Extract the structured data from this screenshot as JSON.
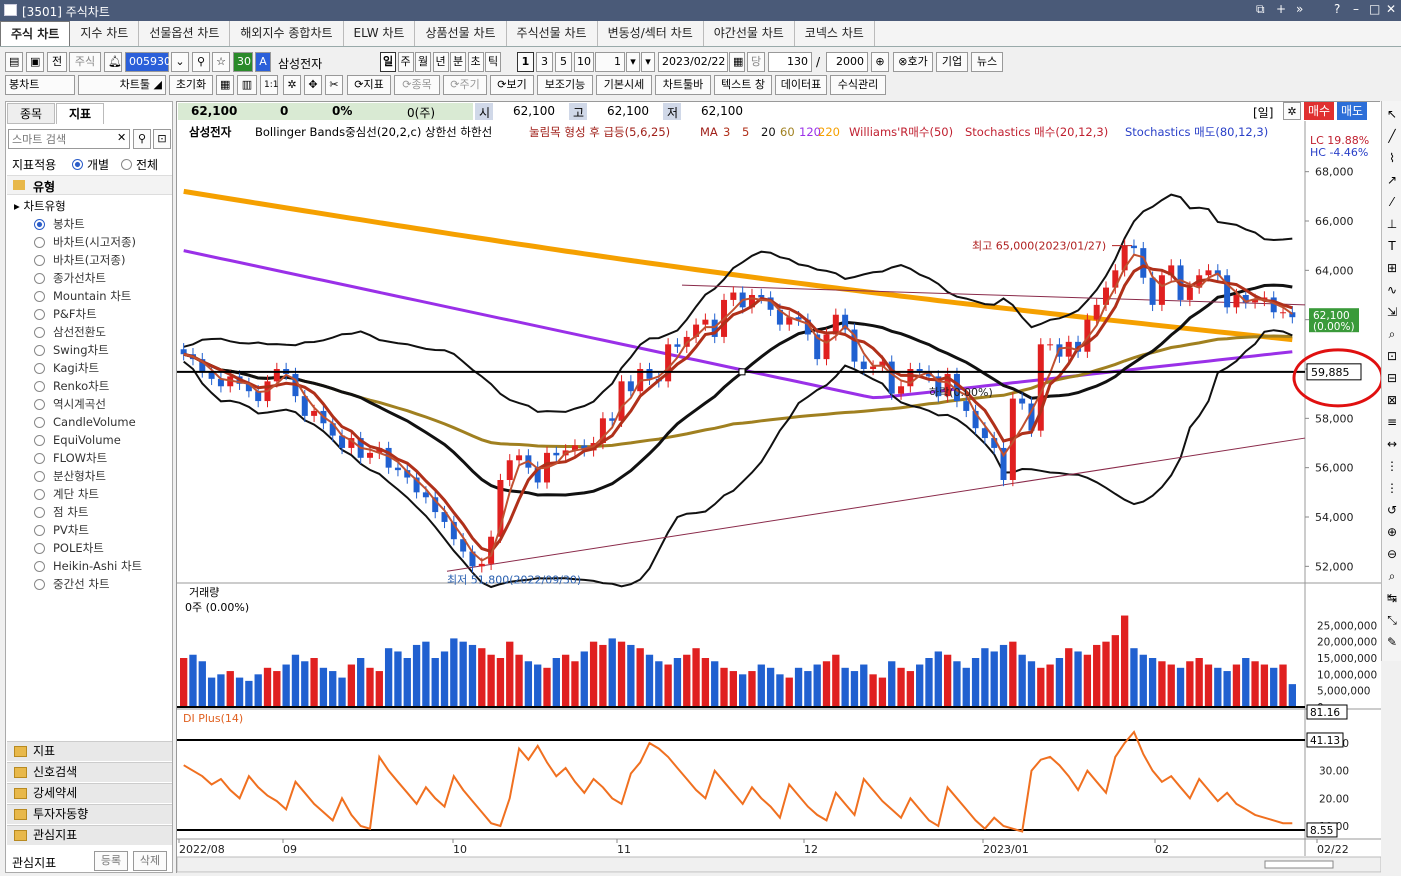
{
  "window": {
    "title": "[3501] 주식차트"
  },
  "tabs": [
    "주식 차트",
    "지수 차트",
    "선물옵션 차트",
    "해외지수 종합차트",
    "ELW 차트",
    "상품선물 차트",
    "주식선물 차트",
    "변동성/섹터 차트",
    "야간선물 차트",
    "코넥스 차트"
  ],
  "toolbar": {
    "jeon": "전",
    "stock_btn": "주식",
    "code": "005930",
    "period_val": "30",
    "a_btn": "A",
    "stock_name": "삼성전자",
    "period_labels": [
      "일",
      "주",
      "월",
      "년",
      "분",
      "초",
      "틱"
    ],
    "intervals": [
      "1",
      "3",
      "5",
      "10"
    ],
    "multiplier": "1",
    "date": "2023/02/22",
    "dang": "당",
    "count": "130",
    "sep": "/",
    "total": "2000",
    "hoga": "⊗호가",
    "company": "기업",
    "news": "뉴스"
  },
  "toolbar2": {
    "chart_type": "봉차트",
    "chart_tool": "차트툴",
    "reset": "초기화",
    "ratio": "1:1",
    "indicator": "지표",
    "stock": "종목",
    "period": "주기",
    "view": "보기",
    "aux": "보조기능",
    "basic": "기본시세",
    "toolbar": "차트툴바",
    "text_window": "텍스트 창",
    "datatable": "데이터표",
    "formula": "수식관리"
  },
  "sidebar": {
    "tabs": [
      "종목",
      "지표"
    ],
    "search_placeholder": "스마트 검색",
    "apply_label": "지표적용",
    "apply_options": [
      "개별",
      "전체"
    ],
    "category": "유형",
    "tree_parent": "차트유형",
    "chart_types": [
      "봉차트",
      "바차트(시고저종)",
      "바차트(고저종)",
      "종가선차트",
      "Mountain 차트",
      "P&F차트",
      "삼선전환도",
      "Swing차트",
      "Kagi차트",
      "Renko차트",
      "역시계곡선",
      "CandleVolume",
      "EquiVolume",
      "FLOW차트",
      "분산형차트",
      "계단 차트",
      "점 차트",
      "PV차트",
      "POLE차트",
      "Heikin-Ashi 차트",
      "중간선 차트"
    ],
    "accordion": [
      "지표",
      "신호검색",
      "강세약세",
      "투자자동향",
      "관심지표"
    ],
    "footer_label": "관심지표",
    "register": "등록",
    "delete": "삭제"
  },
  "infobar": {
    "price": "62,100",
    "change": "0",
    "pct": "0%",
    "vol": "0(주)",
    "open_l": "시",
    "open": "62,100",
    "high_l": "고",
    "high": "62,100",
    "low_l": "저",
    "low": "62,100",
    "unit": "[일]",
    "buy": "매수",
    "sell": "매도"
  },
  "legend": {
    "name": "삼성전자",
    "bb": "Bollinger Bands중심선(20,2,c) 상한선 하한선",
    "signal": "눌림목 형성 후 급등(5,6,25)",
    "ma_label": "MA",
    "ma": [
      "3",
      "5",
      "20",
      "60",
      "120",
      "220"
    ],
    "ma_colors": [
      "#b0301a",
      "#b0301a",
      "#111111",
      "#a08020",
      "#9a30e8",
      "#f5a000"
    ],
    "williams": "Williams'R매수(50)",
    "stoch_buy": "Stochastics 매수(20,12,3)",
    "stoch_sell": "Stochastics 매도(80,12,3)"
  },
  "lc": "LC  19.88%",
  "hc": "HC  -4.46%",
  "annotations": {
    "high": "최고 65,000(2023/01/27)",
    "low": "최저 51,800(2022/09/30)",
    "mid": "하락(0.00%)"
  },
  "price_axis": [
    "68,000",
    "66,000",
    "64,000",
    "62,000",
    "60,000",
    "58,000",
    "56,000",
    "54,000",
    "52,000"
  ],
  "current_price": "62,100",
  "current_pct": "(0.00%)",
  "crosshair_price": "59,885",
  "volume": {
    "title": "거래량",
    "value": "0주 (0.00%)",
    "axis": [
      "25,000,000",
      "20,000,000",
      "15,000,000",
      "10,000,000",
      "5,000,000",
      "0"
    ],
    "marker": "81.16"
  },
  "di": {
    "title": "DI Plus(14)",
    "axis": [
      "40.00",
      "30.00",
      "20.00",
      "10.00"
    ],
    "upper": "41.13",
    "lower": "8.55"
  },
  "x_axis": [
    "2022/08",
    "09",
    "10",
    "11",
    "12",
    "2023/01",
    "02",
    "02/22"
  ],
  "chart_data": {
    "type": "candlestick",
    "title": "삼성전자",
    "price_range": [
      51000,
      69000
    ],
    "high_point": {
      "date": "2023/01/27",
      "value": 65000
    },
    "low_point": {
      "date": "2022/09/30",
      "value": 51800
    },
    "last": 62100,
    "closes": [
      60600,
      60400,
      59900,
      59600,
      59300,
      59700,
      59400,
      59100,
      58700,
      59500,
      60000,
      59800,
      58900,
      58100,
      58300,
      57800,
      57300,
      56800,
      57200,
      56400,
      56600,
      56800,
      56000,
      55900,
      55600,
      55000,
      54800,
      54200,
      53800,
      53100,
      52600,
      52000,
      52100,
      53200,
      55500,
      56300,
      56500,
      56000,
      55400,
      56600,
      56500,
      56700,
      56900,
      56700,
      57000,
      58000,
      57900,
      59500,
      59100,
      60000,
      59600,
      59500,
      61000,
      60900,
      61300,
      61800,
      62000,
      61300,
      62800,
      63100,
      62500,
      63000,
      62900,
      62400,
      61800,
      62100,
      62000,
      61400,
      60400,
      61400,
      62200,
      61600,
      60300,
      60000,
      60100,
      60300,
      59000,
      59300,
      60000,
      59900,
      59700,
      58900,
      59800,
      58700,
      58300,
      57600,
      57200,
      56800,
      55500,
      58800,
      58600,
      57500,
      61000,
      61000,
      60500,
      61100,
      60700,
      62000,
      62600,
      63300,
      64000,
      65000,
      64900,
      63700,
      62600,
      63800,
      64200,
      62800,
      63300,
      63800,
      64000,
      63800,
      62500,
      63000,
      62700,
      62800,
      62900,
      62300,
      62300,
      62100
    ],
    "ma220_start": 67200,
    "ma220_end": 61200,
    "ma120_start": 64800,
    "ma120_end": 60900,
    "volume_values": [
      15,
      16,
      14,
      9,
      10,
      11,
      9,
      8,
      10,
      12,
      11,
      13,
      16,
      14,
      15,
      12,
      11,
      9,
      13,
      15,
      12,
      11,
      18,
      17,
      15,
      19,
      20,
      15,
      17,
      21,
      20,
      19,
      18,
      16,
      15,
      20,
      16,
      14,
      13,
      12,
      15,
      16,
      14,
      17,
      20,
      19,
      21,
      20,
      19,
      18,
      16,
      14,
      13,
      15,
      16,
      18,
      15,
      14,
      12,
      11,
      10,
      11,
      13,
      12,
      10,
      9,
      12,
      11,
      13,
      14,
      16,
      12,
      11,
      13,
      10,
      9,
      14,
      12,
      11,
      13,
      15,
      17,
      16,
      14,
      12,
      15,
      18,
      17,
      19,
      20,
      16,
      14,
      12,
      13,
      15,
      18,
      17,
      16,
      19,
      20,
      22,
      28,
      18,
      16,
      15,
      14,
      13,
      12,
      14,
      15,
      13,
      12,
      11,
      13,
      15,
      14,
      13,
      12,
      13,
      7
    ],
    "di_values": [
      32,
      30,
      28,
      25,
      27,
      23,
      20,
      28,
      24,
      21,
      19,
      16,
      26,
      22,
      18,
      15,
      12,
      20,
      14,
      10,
      9,
      35,
      30,
      26,
      22,
      18,
      24,
      20,
      17,
      28,
      23,
      19,
      15,
      11,
      10,
      20,
      38,
      34,
      39,
      33,
      28,
      31,
      26,
      22,
      27,
      24,
      20,
      18,
      29,
      33,
      40,
      38,
      35,
      31,
      27,
      23,
      20,
      30,
      26,
      22,
      18,
      24,
      20,
      17,
      13,
      25,
      21,
      17,
      14,
      12,
      22,
      18,
      14,
      27,
      23,
      19,
      16,
      13,
      20,
      16,
      12,
      10,
      24,
      20,
      16,
      12,
      9,
      13,
      10,
      9,
      8,
      30,
      34,
      35,
      32,
      28,
      23,
      30,
      26,
      22,
      35,
      40,
      44,
      36,
      30,
      26,
      28,
      24,
      20,
      27,
      23,
      19,
      22,
      18,
      16,
      14,
      13,
      12,
      11,
      11
    ]
  }
}
